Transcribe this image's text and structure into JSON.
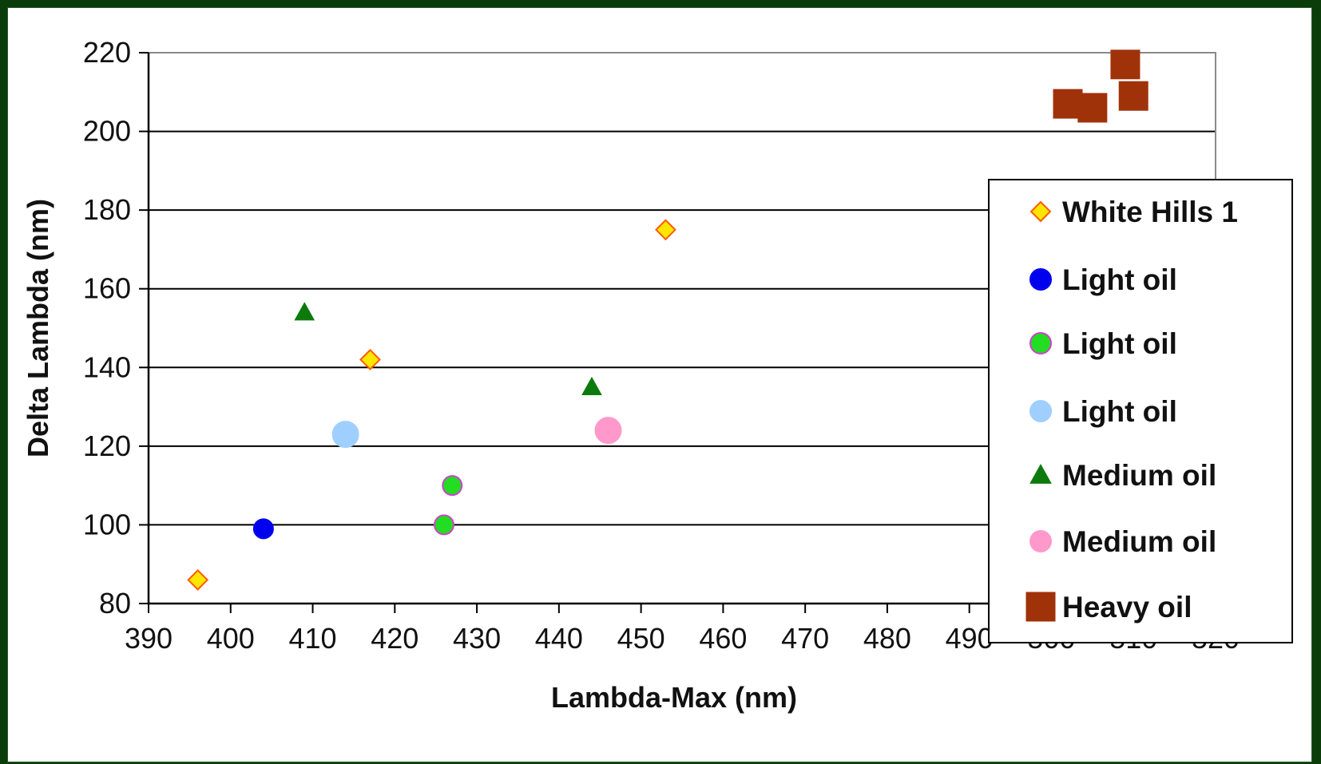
{
  "chart_data": {
    "type": "scatter",
    "title": "",
    "xlabel": "Lambda-Max (nm)",
    "ylabel": "Delta Lambda (nm)",
    "xlim": [
      390,
      520
    ],
    "ylim": [
      80,
      220
    ],
    "xticks": [
      390,
      400,
      410,
      420,
      430,
      440,
      450,
      460,
      470,
      480,
      490,
      500,
      510,
      520
    ],
    "yticks": [
      80,
      100,
      120,
      140,
      160,
      180,
      200,
      220
    ],
    "grid": "horizontal",
    "legend_position": "right",
    "series": [
      {
        "name": "White Hills 1",
        "marker": "diamond",
        "color": "#ffe600",
        "stroke": "#ff5a00",
        "points": [
          [
            396,
            86
          ],
          [
            417,
            142
          ],
          [
            453,
            175
          ]
        ]
      },
      {
        "name": "Light oil",
        "marker": "circle",
        "color": "#0000ee",
        "stroke": "#0000ee",
        "points": [
          [
            404,
            99
          ]
        ]
      },
      {
        "name": "Light oil",
        "marker": "circle",
        "color": "#22dd22",
        "stroke": "#cc44cc",
        "points": [
          [
            426,
            100
          ],
          [
            427,
            110
          ]
        ]
      },
      {
        "name": "Light oil",
        "marker": "circle",
        "color": "#9fcfff",
        "stroke": "#9fcfff",
        "points": [
          [
            414,
            123
          ]
        ]
      },
      {
        "name": "Medium oil",
        "marker": "triangle",
        "color": "#0d7a0d",
        "stroke": "#0d7a0d",
        "points": [
          [
            409,
            154
          ],
          [
            444,
            135
          ]
        ]
      },
      {
        "name": "Medium oil",
        "marker": "circle",
        "color": "#ff99cc",
        "stroke": "#ff99cc",
        "points": [
          [
            446,
            124
          ]
        ]
      },
      {
        "name": "Heavy oil",
        "marker": "square",
        "color": "#a0320a",
        "stroke": "#a0320a",
        "points": [
          [
            502,
            207
          ],
          [
            505,
            206
          ],
          [
            509,
            217
          ],
          [
            510,
            209
          ]
        ]
      }
    ]
  }
}
